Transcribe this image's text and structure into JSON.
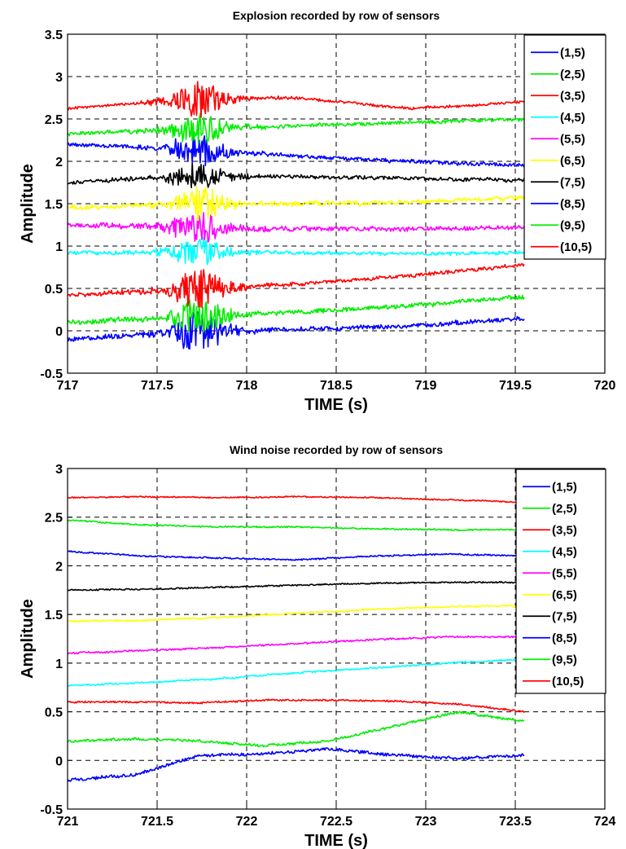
{
  "chart_data": [
    {
      "type": "line",
      "title": "Explosion recorded by row of sensors",
      "xlabel": "TIME (s)",
      "ylabel": "Amplitude",
      "xlim": [
        717,
        720
      ],
      "ylim": [
        -0.5,
        3.5
      ],
      "xticks": [
        717,
        717.5,
        718,
        718.5,
        719,
        719.5,
        720
      ],
      "yticks": [
        -0.5,
        0,
        0.5,
        1,
        1.5,
        2,
        2.5,
        3,
        3.5
      ],
      "xtick_labels": [
        "717",
        "717.5",
        "718",
        "718.5",
        "719",
        "719.5",
        "720"
      ],
      "ytick_labels": [
        "-0.5",
        "0",
        "0.5",
        "1",
        "1.5",
        "2",
        "2.5",
        "3",
        "3.5"
      ],
      "grid": true,
      "legend_position": "top-right",
      "event": {
        "center": 717.73,
        "width": 0.16,
        "extent": 0.55
      },
      "series": [
        {
          "name": "(1,5)",
          "color": "#0000ff",
          "x_start": 717.0,
          "x_end": 719.55,
          "baseline": [
            -0.1,
            -0.02,
            0.02,
            0.05,
            0.15
          ],
          "noise": 0.025,
          "burst": 0.18
        },
        {
          "name": "(2,5)",
          "color": "#00ee00",
          "x_start": 717.0,
          "x_end": 719.55,
          "baseline": [
            0.1,
            0.16,
            0.22,
            0.3,
            0.4
          ],
          "noise": 0.025,
          "burst": 0.16
        },
        {
          "name": "(3,5)",
          "color": "#ff0000",
          "x_start": 717.0,
          "x_end": 719.55,
          "baseline": [
            0.42,
            0.48,
            0.55,
            0.65,
            0.78
          ],
          "noise": 0.02,
          "burst": 0.18
        },
        {
          "name": "(4,5)",
          "color": "#00ffff",
          "x_start": 717.0,
          "x_end": 719.55,
          "baseline": [
            0.92,
            0.93,
            0.92,
            0.91,
            0.92
          ],
          "noise": 0.02,
          "burst": 0.14
        },
        {
          "name": "(5,5)",
          "color": "#ff00ff",
          "x_start": 717.0,
          "x_end": 719.55,
          "baseline": [
            1.25,
            1.22,
            1.2,
            1.2,
            1.22
          ],
          "noise": 0.025,
          "burst": 0.15
        },
        {
          "name": "(6,5)",
          "color": "#ffff00",
          "x_start": 717.0,
          "x_end": 719.55,
          "baseline": [
            1.45,
            1.5,
            1.5,
            1.52,
            1.57
          ],
          "noise": 0.025,
          "burst": 0.16
        },
        {
          "name": "(7,5)",
          "color": "#000000",
          "x_start": 717.0,
          "x_end": 719.55,
          "baseline": [
            1.75,
            1.82,
            1.82,
            1.8,
            1.78
          ],
          "noise": 0.02,
          "burst": 0.13
        },
        {
          "name": "(8,5)",
          "color": "#0000ff",
          "x_start": 717.0,
          "x_end": 719.55,
          "baseline": [
            2.2,
            2.15,
            2.06,
            2.0,
            1.95
          ],
          "noise": 0.02,
          "burst": 0.14
        },
        {
          "name": "(9,5)",
          "color": "#00ee00",
          "x_start": 717.0,
          "x_end": 719.55,
          "baseline": [
            2.32,
            2.38,
            2.42,
            2.46,
            2.5
          ],
          "noise": 0.02,
          "burst": 0.16
        },
        {
          "name": "(10,5)",
          "color": "#ff0000",
          "x_start": 717.0,
          "x_end": 719.55,
          "baseline": [
            2.62,
            2.72,
            2.75,
            2.62,
            2.7
          ],
          "noise": 0.015,
          "burst": 0.16
        }
      ]
    },
    {
      "type": "line",
      "title": "Wind noise recorded by row of sensors",
      "xlabel": "TIME (s)",
      "ylabel": "Amplitude",
      "xlim": [
        721,
        724
      ],
      "ylim": [
        -0.5,
        3
      ],
      "xticks": [
        721,
        721.5,
        722,
        722.5,
        723,
        723.5,
        724
      ],
      "yticks": [
        -0.5,
        0,
        0.5,
        1,
        1.5,
        2,
        2.5,
        3
      ],
      "xtick_labels": [
        "721",
        "721.5",
        "722",
        "722.5",
        "723",
        "723.5",
        "724"
      ],
      "ytick_labels": [
        "-0.5",
        "0",
        "0.5",
        "1",
        "1.5",
        "2",
        "2.5",
        "3"
      ],
      "grid": true,
      "legend_position": "top-right",
      "series": [
        {
          "name": "(1,5)",
          "color": "#0000ff",
          "x_start": 721.0,
          "x_end": 723.55,
          "baseline": [
            -0.2,
            -0.15,
            0.05,
            0.07,
            0.12,
            0.05,
            0.02,
            0.05
          ],
          "noise": 0.015,
          "burst": 0
        },
        {
          "name": "(2,5)",
          "color": "#00ee00",
          "x_start": 721.0,
          "x_end": 723.55,
          "baseline": [
            0.2,
            0.22,
            0.2,
            0.15,
            0.2,
            0.35,
            0.5,
            0.4
          ],
          "noise": 0.012,
          "burst": 0
        },
        {
          "name": "(3,5)",
          "color": "#ff0000",
          "x_start": 721.0,
          "x_end": 723.55,
          "baseline": [
            0.6,
            0.6,
            0.59,
            0.62,
            0.62,
            0.61,
            0.58,
            0.5
          ],
          "noise": 0.008,
          "burst": 0
        },
        {
          "name": "(4,5)",
          "color": "#00ffff",
          "x_start": 721.0,
          "x_end": 723.55,
          "baseline": [
            0.77,
            0.8,
            0.84,
            0.9,
            0.95,
            1.0,
            1.04
          ],
          "noise": 0.008,
          "burst": 0
        },
        {
          "name": "(5,5)",
          "color": "#ff00ff",
          "x_start": 721.0,
          "x_end": 723.55,
          "baseline": [
            1.1,
            1.13,
            1.16,
            1.2,
            1.24,
            1.27,
            1.27
          ],
          "noise": 0.008,
          "burst": 0
        },
        {
          "name": "(6,5)",
          "color": "#ffff00",
          "x_start": 721.0,
          "x_end": 723.55,
          "baseline": [
            1.43,
            1.44,
            1.47,
            1.51,
            1.55,
            1.58,
            1.59
          ],
          "noise": 0.008,
          "burst": 0
        },
        {
          "name": "(7,5)",
          "color": "#000000",
          "x_start": 721.0,
          "x_end": 723.55,
          "baseline": [
            1.75,
            1.76,
            1.78,
            1.8,
            1.82,
            1.83,
            1.83
          ],
          "noise": 0.007,
          "burst": 0
        },
        {
          "name": "(8,5)",
          "color": "#0000ff",
          "x_start": 721.0,
          "x_end": 723.55,
          "baseline": [
            2.15,
            2.1,
            2.08,
            2.06,
            2.1,
            2.12,
            2.1
          ],
          "noise": 0.007,
          "burst": 0
        },
        {
          "name": "(9,5)",
          "color": "#00ee00",
          "x_start": 721.0,
          "x_end": 723.55,
          "baseline": [
            2.47,
            2.42,
            2.4,
            2.4,
            2.38,
            2.37,
            2.37
          ],
          "noise": 0.007,
          "burst": 0
        },
        {
          "name": "(10,5)",
          "color": "#ff0000",
          "x_start": 721.0,
          "x_end": 723.55,
          "baseline": [
            2.7,
            2.71,
            2.7,
            2.71,
            2.7,
            2.68,
            2.65
          ],
          "noise": 0.006,
          "burst": 0
        }
      ]
    }
  ]
}
